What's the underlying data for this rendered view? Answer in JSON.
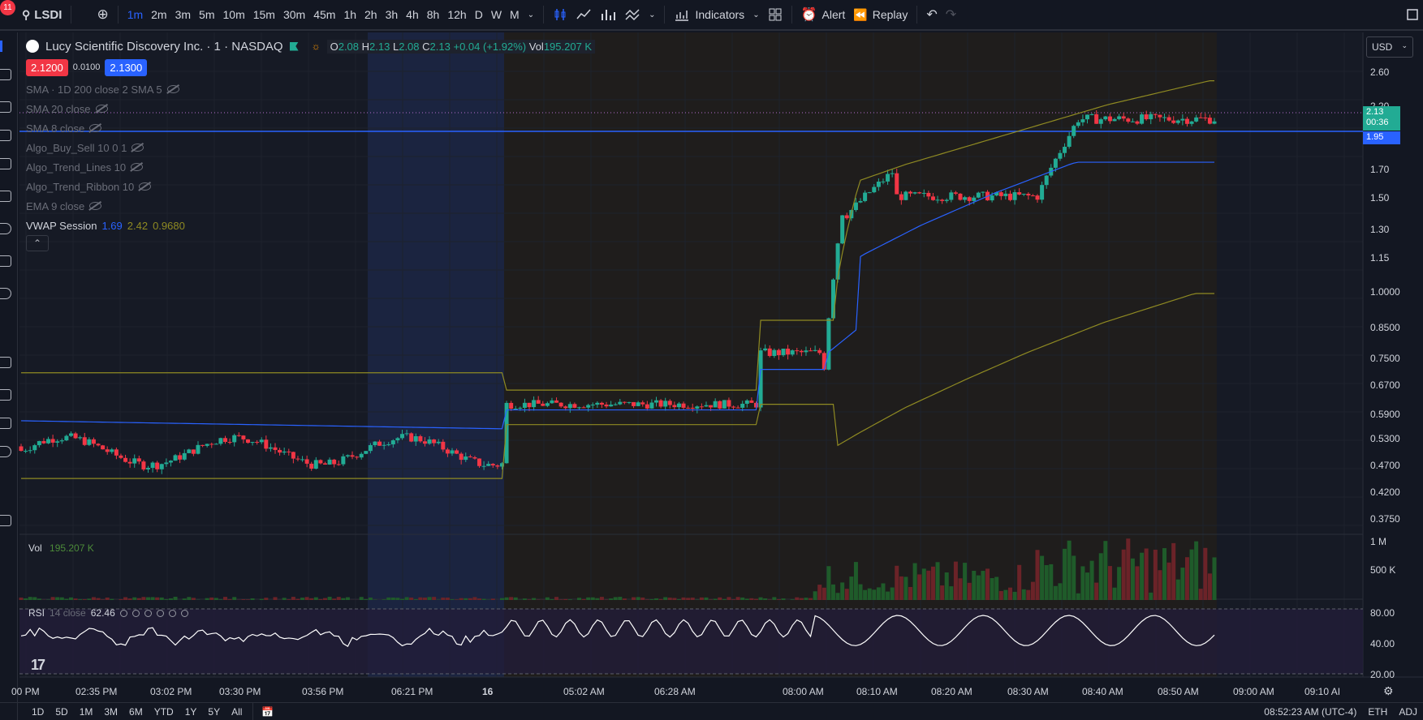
{
  "toolbar": {
    "notifications": "11",
    "symbol": "LSDI",
    "intervals": [
      "1m",
      "2m",
      "3m",
      "5m",
      "10m",
      "15m",
      "30m",
      "45m",
      "1h",
      "2h",
      "3h",
      "4h",
      "8h",
      "12h",
      "D",
      "W",
      "M"
    ],
    "active_interval": "1m",
    "indicators_label": "Indicators",
    "alert_label": "Alert",
    "replay_label": "Replay"
  },
  "legend": {
    "title": "Lucy Scientific Discovery Inc. · 1 · NASDAQ",
    "o_label": "O",
    "o": "2.08",
    "h_label": "H",
    "h": "2.13",
    "l_label": "L",
    "l": "2.08",
    "c_label": "C",
    "c": "2.13",
    "change": "+0.04 (+1.92%)",
    "vol_label": "Vol",
    "vol": "195.207 K",
    "sell_price": "2.1200",
    "spread": "0.0100",
    "buy_price": "2.1300",
    "indicators": [
      {
        "name": "SMA · 1D 200 close 2 SMA 5"
      },
      {
        "name": "SMA 20 close"
      },
      {
        "name": "SMA 8 close"
      },
      {
        "name": "Algo_Buy_Sell 10 0 1"
      },
      {
        "name": "Algo_Trend_Lines 10"
      },
      {
        "name": "Algo_Trend_Ribbon 10"
      },
      {
        "name": "EMA 9 close"
      }
    ],
    "vwap_label": "VWAP Session",
    "vwap_values": [
      "1.69",
      "2.42",
      "0.9680"
    ]
  },
  "price_axis": {
    "currency": "USD",
    "labels": [
      "2.60",
      "2.20",
      "1.70",
      "1.50",
      "1.30",
      "1.15",
      "1.0000",
      "0.8500",
      "0.7500",
      "0.6700",
      "0.5900",
      "0.5300",
      "0.4700",
      "0.4200",
      "0.3750"
    ],
    "last_price": "2.13",
    "countdown": "00:36",
    "line_price": "1.95",
    "vol_labels": [
      "1 M",
      "500 K"
    ],
    "rsi_labels": [
      "80.00",
      "40.00",
      "20.00"
    ]
  },
  "volume_pane": {
    "label": "Vol",
    "value": "195.207 K"
  },
  "rsi_pane": {
    "label": "RSI",
    "params": "14 close",
    "value": "62.46"
  },
  "time_axis": [
    "00 PM",
    "02:35 PM",
    "03:02 PM",
    "03:30 PM",
    "03:56 PM",
    "06:21 PM",
    "16",
    "05:02 AM",
    "06:28 AM",
    "08:00 AM",
    "08:10 AM",
    "08:20 AM",
    "08:30 AM",
    "08:40 AM",
    "08:50 AM",
    "09:00 AM",
    "09:10 AI"
  ],
  "bottom_bar": {
    "ranges": [
      "1D",
      "5D",
      "1M",
      "3M",
      "6M",
      "YTD",
      "1Y",
      "5Y",
      "All"
    ],
    "clock": "08:52:23 AM (UTC-4)",
    "session": "ETH",
    "adj": "ADJ"
  },
  "colors": {
    "up": "#22ab94",
    "down": "#f23645",
    "accent": "#2962ff",
    "vwap": "#2962ff",
    "band": "#8f8a22"
  }
}
